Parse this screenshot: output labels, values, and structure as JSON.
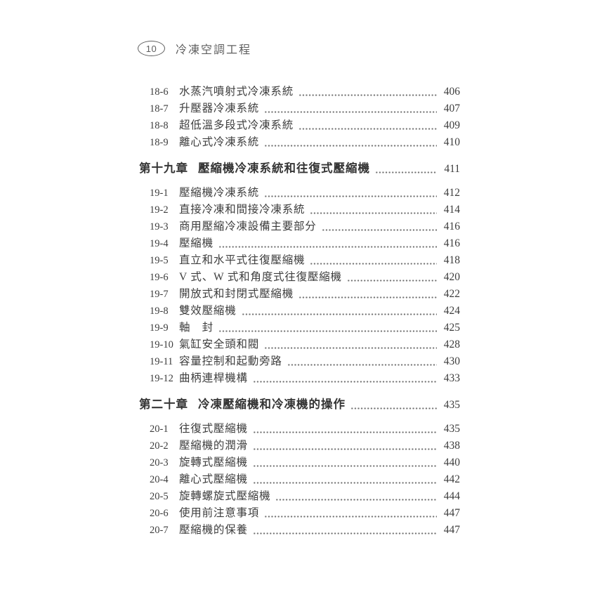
{
  "colors": {
    "paper": "#ffffff",
    "ink": "#3d3d3d",
    "ink_light": "#5f5f5f",
    "leader": "#6e6e6e"
  },
  "header": {
    "page_badge": "10",
    "book_title": "冷凍空調工程"
  },
  "toc": {
    "blocks": [
      {
        "type": "entries",
        "items": [
          {
            "no": "18-6",
            "title": "水蒸汽噴射式冷凍系統",
            "page": "406"
          },
          {
            "no": "18-7",
            "title": "升壓器冷凍系統",
            "page": "407"
          },
          {
            "no": "18-8",
            "title": "超低溫多段式冷凍系統",
            "page": "409"
          },
          {
            "no": "18-9",
            "title": "離心式冷凍系統",
            "page": "410"
          }
        ]
      },
      {
        "type": "chapter",
        "label": "第十九章",
        "title": "壓縮機冷凍系統和往復式壓縮機",
        "page": "411"
      },
      {
        "type": "entries",
        "items": [
          {
            "no": "19-1",
            "title": "壓縮機冷凍系統",
            "page": "412"
          },
          {
            "no": "19-2",
            "title": "直接冷凍和間接冷凍系統",
            "page": "414"
          },
          {
            "no": "19-3",
            "title": "商用壓縮冷凍設備主要部分",
            "page": "416"
          },
          {
            "no": "19-4",
            "title": "壓縮機",
            "page": "416"
          },
          {
            "no": "19-5",
            "title": "直立和水平式往復壓縮機",
            "page": "418"
          },
          {
            "no": "19-6",
            "title": "V 式、W 式和角度式往復壓縮機",
            "page": "420"
          },
          {
            "no": "19-7",
            "title": "開放式和封閉式壓縮機",
            "page": "422"
          },
          {
            "no": "19-8",
            "title": "雙效壓縮機",
            "page": "424"
          },
          {
            "no": "19-9",
            "title": "軸　封",
            "page": "425"
          },
          {
            "no": "19-10",
            "title": "氣缸安全頭和閥",
            "page": "428"
          },
          {
            "no": "19-11",
            "title": "容量控制和起動旁路",
            "page": "430"
          },
          {
            "no": "19-12",
            "title": "曲柄連桿機構",
            "page": "433"
          }
        ]
      },
      {
        "type": "chapter",
        "label": "第二十章",
        "title": "冷凍壓縮機和冷凍機的操作",
        "page": "435"
      },
      {
        "type": "entries",
        "items": [
          {
            "no": "20-1",
            "title": "往復式壓縮機",
            "page": "435"
          },
          {
            "no": "20-2",
            "title": "壓縮機的潤滑",
            "page": "438"
          },
          {
            "no": "20-3",
            "title": "旋轉式壓縮機",
            "page": "440"
          },
          {
            "no": "20-4",
            "title": "離心式壓縮機",
            "page": "442"
          },
          {
            "no": "20-5",
            "title": "旋轉螺旋式壓縮機",
            "page": "444"
          },
          {
            "no": "20-6",
            "title": "使用前注意事項",
            "page": "447"
          },
          {
            "no": "20-7",
            "title": "壓縮機的保養",
            "page": "447"
          }
        ]
      }
    ]
  }
}
